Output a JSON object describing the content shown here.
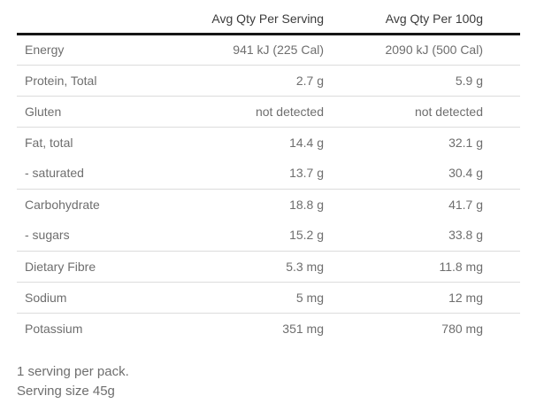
{
  "table": {
    "columns": [
      "",
      "Avg Qty Per Serving",
      "Avg Qty Per 100g"
    ],
    "rows": [
      {
        "label": "Energy",
        "per_serving": "941 kJ (225 Cal)",
        "per_100g": "2090 kJ (500 Cal)"
      },
      {
        "label": "Protein, Total",
        "per_serving": "2.7 g",
        "per_100g": "5.9 g"
      },
      {
        "label": "Gluten",
        "per_serving": "not detected",
        "per_100g": "not detected"
      },
      {
        "label": "Fat, total",
        "per_serving": "14.4 g",
        "per_100g": "32.1 g"
      },
      {
        "label": "- saturated",
        "per_serving": "13.7 g",
        "per_100g": "30.4 g"
      },
      {
        "label": "Carbohydrate",
        "per_serving": "18.8 g",
        "per_100g": "41.7 g"
      },
      {
        "label": "- sugars",
        "per_serving": "15.2 g",
        "per_100g": "33.8 g"
      },
      {
        "label": "Dietary Fibre",
        "per_serving": "5.3 mg",
        "per_100g": "11.8 mg"
      },
      {
        "label": "Sodium",
        "per_serving": "5 mg",
        "per_100g": "12 mg"
      },
      {
        "label": "Potassium",
        "per_serving": "351 mg",
        "per_100g": "780 mg"
      }
    ]
  },
  "footer": {
    "servings_per_pack": "1 serving per pack.",
    "serving_size": "Serving size 45g"
  }
}
